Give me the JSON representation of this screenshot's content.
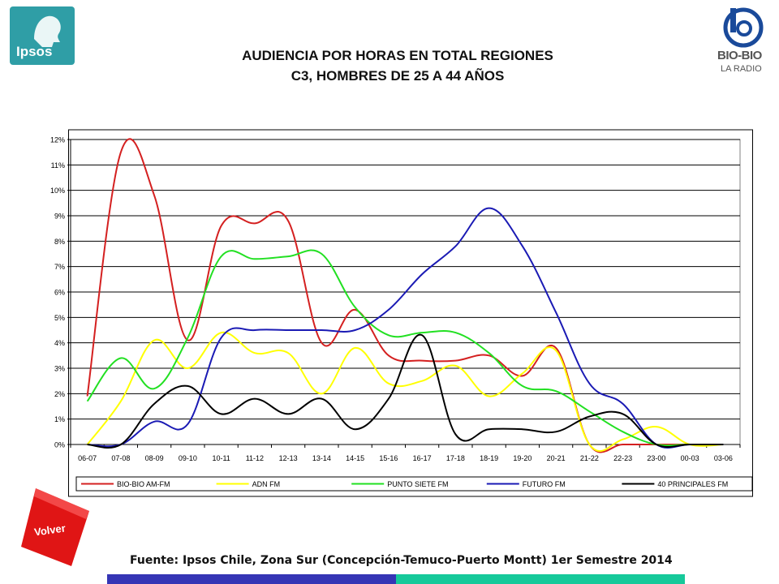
{
  "header": {
    "title_line1": "AUDIENCIA POR HORAS EN TOTAL REGIONES",
    "title_line2": "C3, HOMBRES DE 25 A 44 AÑOS",
    "ipsos_logo_text": "Ipsos",
    "biobio_logo_text": "BIO-BIO",
    "biobio_logo_subtext": "LA RADIO"
  },
  "footer": {
    "source": "Fuente: Ipsos Chile, Zona Sur (Concepción-Temuco-Puerto Montt) 1er Semestre 2014",
    "volver_label": "Volver"
  },
  "colors": {
    "bio_bio": "#d42020",
    "adn": "#ffff00",
    "punto_siete": "#22e022",
    "futuro": "#1a1ab4",
    "principales_40": "#000000",
    "ipsos_teal": "#2f9ea6",
    "volver_red": "#e01515"
  },
  "chart_data": {
    "type": "line",
    "title": "",
    "xlabel": "",
    "ylabel": "",
    "ylim": [
      0,
      12
    ],
    "yticks": [
      "0%",
      "1%",
      "2%",
      "3%",
      "4%",
      "5%",
      "6%",
      "7%",
      "8%",
      "9%",
      "10%",
      "11%",
      "12%"
    ],
    "grid": true,
    "legend_position": "bottom",
    "categories": [
      "06-07",
      "07-08",
      "08-09",
      "09-10",
      "10-11",
      "11-12",
      "12-13",
      "13-14",
      "14-15",
      "15-16",
      "16-17",
      "17-18",
      "18-19",
      "19-20",
      "20-21",
      "21-22",
      "22-23",
      "23-00",
      "00-03",
      "03-06"
    ],
    "series": [
      {
        "name": "BIO-BIO AM-FM",
        "color": "#d42020",
        "values": [
          1.9,
          11.5,
          9.8,
          4.1,
          8.6,
          8.7,
          8.8,
          4.0,
          5.3,
          3.5,
          3.3,
          3.3,
          3.5,
          2.7,
          3.8,
          0.0,
          0.0,
          0.0,
          0.0,
          0.0
        ]
      },
      {
        "name": "ADN FM",
        "color": "#ffff00",
        "values": [
          0.0,
          1.7,
          4.1,
          3.0,
          4.4,
          3.6,
          3.6,
          2.0,
          3.8,
          2.4,
          2.5,
          3.1,
          1.9,
          2.8,
          3.7,
          0.0,
          0.2,
          0.7,
          0.0,
          0.0
        ]
      },
      {
        "name": "PUNTO SIETE FM",
        "color": "#22e022",
        "values": [
          1.7,
          3.4,
          2.2,
          4.2,
          7.4,
          7.3,
          7.4,
          7.5,
          5.4,
          4.3,
          4.4,
          4.4,
          3.6,
          2.3,
          2.1,
          1.3,
          0.5,
          0.0,
          0.0,
          0.0
        ]
      },
      {
        "name": "FUTURO FM",
        "color": "#1a1ab4",
        "values": [
          0.0,
          0.0,
          0.9,
          0.8,
          4.2,
          4.5,
          4.5,
          4.5,
          4.5,
          5.3,
          6.7,
          7.8,
          9.3,
          7.8,
          5.2,
          2.4,
          1.6,
          0.0,
          0.0,
          0.0
        ]
      },
      {
        "name": "40 PRINCIPALES FM",
        "color": "#000000",
        "values": [
          0.0,
          0.0,
          1.6,
          2.3,
          1.2,
          1.8,
          1.2,
          1.8,
          0.6,
          1.8,
          4.3,
          0.4,
          0.6,
          0.6,
          0.5,
          1.1,
          1.2,
          0.0,
          0.0,
          0.0
        ]
      }
    ]
  }
}
